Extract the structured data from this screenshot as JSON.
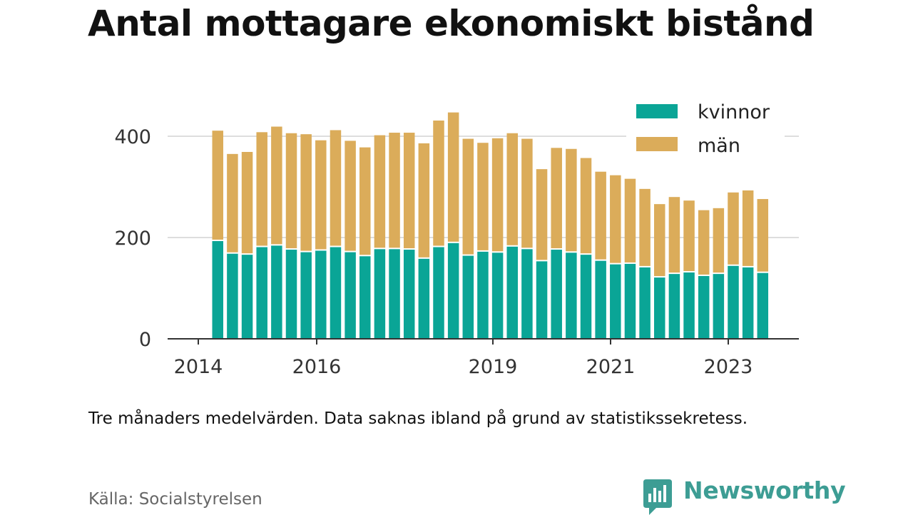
{
  "title": "Antal mottagare ekonomiskt bistånd",
  "note": "Tre månaders medelvärden. Data saknas ibland på grund av statistikssekretess.",
  "source": "Källa: Socialstyrelsen",
  "brand": {
    "name": "Newsworthy",
    "icon": "newsworthy-logo-icon"
  },
  "colors": {
    "kvinnor": "#0aa596",
    "man": "#dbac5a",
    "brand": "#3d9d94",
    "grid": "#dddddd",
    "axis": "#333333"
  },
  "chart_data": {
    "type": "bar",
    "stacked": true,
    "legend_position": "top-right",
    "grid": true,
    "ylim": [
      0,
      450
    ],
    "y_ticks": [
      "0",
      "200",
      "400"
    ],
    "x_ticks": [
      "2014",
      "2016",
      "2019",
      "2021",
      "2023"
    ],
    "series": [
      {
        "name": "kvinnor",
        "values": [
          193,
          168,
          166,
          181,
          184,
          176,
          171,
          174,
          181,
          171,
          163,
          177,
          177,
          176,
          158,
          181,
          189,
          164,
          172,
          170,
          182,
          177,
          153,
          176,
          170,
          166,
          154,
          147,
          148,
          141,
          121,
          128,
          131,
          124,
          128,
          144,
          141,
          130
        ]
      },
      {
        "name": "män",
        "values": [
          218,
          197,
          203,
          227,
          235,
          230,
          233,
          218,
          231,
          220,
          215,
          225,
          230,
          231,
          228,
          250,
          258,
          231,
          215,
          226,
          224,
          218,
          182,
          201,
          205,
          191,
          176,
          176,
          168,
          155,
          145,
          152,
          142,
          130,
          130,
          145,
          152,
          146
        ]
      }
    ]
  }
}
